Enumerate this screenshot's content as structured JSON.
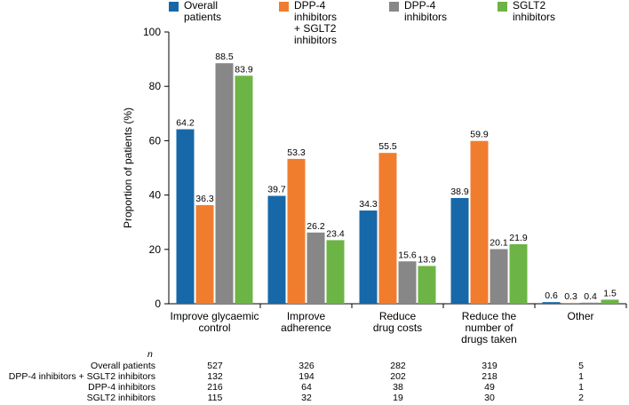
{
  "chart_data": {
    "type": "bar",
    "ylabel": "Proportion of patients (%)",
    "xlabel": "",
    "ylim": [
      0,
      100
    ],
    "yticks": [
      0,
      20,
      40,
      60,
      80,
      100
    ],
    "grid": false,
    "legend_position": "top",
    "categories": [
      "Improve glycaemic\ncontrol",
      "Improve\nadherence",
      "Reduce\ndrug costs",
      "Reduce the\nnumber of\ndrugs taken",
      "Other"
    ],
    "series": [
      {
        "name": "Overall patients",
        "color": "#1668a8",
        "values": [
          64.2,
          39.7,
          34.3,
          38.9,
          0.6
        ],
        "labels": [
          "64.2",
          "39.7",
          "34.3",
          "38.9",
          "0.6"
        ]
      },
      {
        "name": "DPP-4 inhibitors\n+ SGLT2 inhibitors",
        "color": "#f07d2e",
        "values": [
          36.3,
          53.3,
          55.5,
          59.9,
          0.3
        ],
        "labels": [
          "36.3",
          "53.3",
          "55.5",
          "59.9",
          "0.3"
        ]
      },
      {
        "name": "DPP-4 inhibitors",
        "color": "#878787",
        "values": [
          88.5,
          26.2,
          15.6,
          20.1,
          0.4
        ],
        "labels": [
          "88.5",
          "26.2",
          "15.6",
          "20.1",
          "0.4"
        ]
      },
      {
        "name": "SGLT2 inhibitors",
        "color": "#6db446",
        "values": [
          83.9,
          23.4,
          13.9,
          21.9,
          1.5
        ],
        "labels": [
          "83.9",
          "23.4",
          "13.9",
          "21.9",
          "1.5"
        ]
      }
    ]
  },
  "n_table": {
    "header": "n",
    "rows": [
      {
        "label": "Overall patients",
        "values": [
          "527",
          "326",
          "282",
          "319",
          "5"
        ]
      },
      {
        "label": "DPP-4 inhibitors + SGLT2 inhibitors",
        "values": [
          "132",
          "194",
          "202",
          "218",
          "1"
        ]
      },
      {
        "label": "DPP-4 inhibitors",
        "values": [
          "216",
          "64",
          "38",
          "49",
          "1"
        ]
      },
      {
        "label": "SGLT2 inhibitors",
        "values": [
          "115",
          "32",
          "19",
          "30",
          "2"
        ]
      }
    ]
  }
}
